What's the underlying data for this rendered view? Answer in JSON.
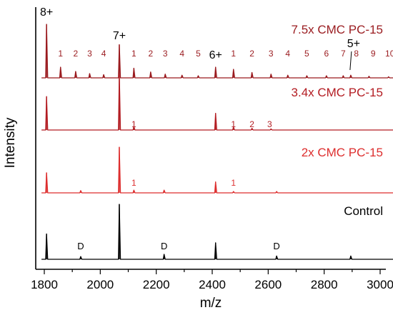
{
  "chart_data": {
    "type": "line",
    "xlabel": "m/z",
    "ylabel": "Intensity",
    "xlim": [
      1750,
      3100
    ],
    "x_ticks": [
      1800,
      2000,
      2200,
      2400,
      2600,
      2800,
      3000
    ],
    "y_ticks_shown": false,
    "grid": false,
    "legend": "none",
    "series": [
      {
        "name": "7.5x CMC PC-15",
        "color": "#9a1b1f",
        "peaks": [
          {
            "x": 1808,
            "height": 1.0
          },
          {
            "x": 1858,
            "height": 0.2
          },
          {
            "x": 1912,
            "height": 0.12
          },
          {
            "x": 1962,
            "height": 0.08
          },
          {
            "x": 2012,
            "height": 0.06
          },
          {
            "x": 2068,
            "height": 0.62
          },
          {
            "x": 2120,
            "height": 0.18
          },
          {
            "x": 2180,
            "height": 0.11
          },
          {
            "x": 2232,
            "height": 0.07
          },
          {
            "x": 2292,
            "height": 0.05
          },
          {
            "x": 2350,
            "height": 0.04
          },
          {
            "x": 2412,
            "height": 0.2
          },
          {
            "x": 2476,
            "height": 0.16
          },
          {
            "x": 2542,
            "height": 0.1
          },
          {
            "x": 2610,
            "height": 0.07
          },
          {
            "x": 2670,
            "height": 0.05
          },
          {
            "x": 2738,
            "height": 0.04
          },
          {
            "x": 2808,
            "height": 0.04
          },
          {
            "x": 2868,
            "height": 0.04
          },
          {
            "x": 2895,
            "height": 0.05
          },
          {
            "x": 2960,
            "height": 0.03
          },
          {
            "x": 3030,
            "height": 0.02
          }
        ]
      },
      {
        "name": "3.4x CMC PC-15",
        "color": "#b31c22",
        "peaks": [
          {
            "x": 1808,
            "height": 0.6
          },
          {
            "x": 2068,
            "height": 1.0
          },
          {
            "x": 2120,
            "height": 0.06
          },
          {
            "x": 2412,
            "height": 0.3
          },
          {
            "x": 2476,
            "height": 0.05
          },
          {
            "x": 2542,
            "height": 0.03
          },
          {
            "x": 2610,
            "height": 0.02
          }
        ]
      },
      {
        "name": "2x CMC PC-15",
        "color": "#dd2e2e",
        "peaks": [
          {
            "x": 1808,
            "height": 0.44
          },
          {
            "x": 1930,
            "height": 0.05
          },
          {
            "x": 2068,
            "height": 1.0
          },
          {
            "x": 2120,
            "height": 0.06
          },
          {
            "x": 2228,
            "height": 0.06
          },
          {
            "x": 2412,
            "height": 0.24
          },
          {
            "x": 2476,
            "height": 0.03
          },
          {
            "x": 2630,
            "height": 0.03
          }
        ]
      },
      {
        "name": "Control",
        "color": "#000000",
        "peaks": [
          {
            "x": 1808,
            "height": 0.46
          },
          {
            "x": 1930,
            "height": 0.05
          },
          {
            "x": 2068,
            "height": 1.0
          },
          {
            "x": 2228,
            "height": 0.09
          },
          {
            "x": 2412,
            "height": 0.3
          },
          {
            "x": 2630,
            "height": 0.06
          },
          {
            "x": 2895,
            "height": 0.06
          }
        ]
      }
    ],
    "charge_labels": [
      {
        "text": "8+",
        "x": 1808
      },
      {
        "text": "7+",
        "x": 2068
      },
      {
        "text": "6+",
        "x": 2412
      },
      {
        "text": "5+",
        "x": 2895
      }
    ],
    "annotations": {
      "7.5x CMC PC-15": [
        {
          "text": "1",
          "x": 1858
        },
        {
          "text": "2",
          "x": 1912
        },
        {
          "text": "3",
          "x": 1962
        },
        {
          "text": "4",
          "x": 2012
        },
        {
          "text": "1",
          "x": 2120
        },
        {
          "text": "2",
          "x": 2180
        },
        {
          "text": "3",
          "x": 2232
        },
        {
          "text": "4",
          "x": 2292
        },
        {
          "text": "5",
          "x": 2350
        },
        {
          "text": "1",
          "x": 2476
        },
        {
          "text": "2",
          "x": 2542
        },
        {
          "text": "3",
          "x": 2610
        },
        {
          "text": "4",
          "x": 2670
        },
        {
          "text": "5",
          "x": 2738
        },
        {
          "text": "6",
          "x": 2808
        },
        {
          "text": "7",
          "x": 2868
        },
        {
          "text": "8",
          "x": 2915
        },
        {
          "text": "9",
          "x": 2975
        },
        {
          "text": "10",
          "x": 3035
        }
      ],
      "3.4x CMC PC-15": [
        {
          "text": "1",
          "x": 2120
        },
        {
          "text": "1",
          "x": 2476
        },
        {
          "text": "2",
          "x": 2542
        },
        {
          "text": "3",
          "x": 2605
        }
      ],
      "2x CMC PC-15": [
        {
          "text": "1",
          "x": 2120
        },
        {
          "text": "1",
          "x": 2476
        }
      ],
      "Control": [
        {
          "text": "D",
          "x": 1930
        },
        {
          "text": "D",
          "x": 2228
        },
        {
          "text": "D",
          "x": 2630
        }
      ]
    }
  }
}
